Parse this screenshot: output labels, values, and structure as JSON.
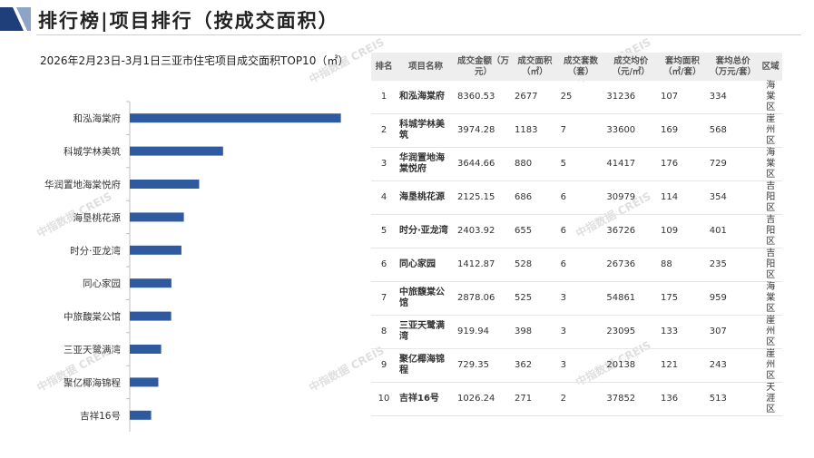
{
  "header": {
    "title": "排行榜|项目排行（按成交面积）"
  },
  "watermark_text": "中指数据 CREIS",
  "colors": {
    "bar": "#2f5aa0",
    "header_mark_dark": "#1f3f7a",
    "header_mark_light": "#8ea3c8"
  },
  "chart_data": {
    "type": "bar",
    "orientation": "horizontal",
    "title": "2026年2月23日-3月1日三亚市住宅项目成交面积TOP10（㎡）",
    "categories": [
      "和泓海棠府",
      "科城学林美筑",
      "华润置地海棠悦府",
      "海垦桃花源",
      "时分·亚龙湾",
      "同心家园",
      "中旅馥棠公馆",
      "三亚天鹭满湾",
      "聚亿椰海锦程",
      "吉祥16号"
    ],
    "values": [
      2677,
      1183,
      880,
      686,
      655,
      528,
      525,
      398,
      362,
      271
    ],
    "xlim": [
      0,
      2900
    ],
    "grid": false,
    "legend": "none"
  },
  "table": {
    "headers": [
      "排名",
      "项目名称",
      "成交金额（万元）",
      "成交面积（㎡）",
      "成交套数（套）",
      "成交均价（元/㎡）",
      "套均面积（㎡/套）",
      "套均总价（万元/套）",
      "区域"
    ],
    "rows": [
      [
        "1",
        "和泓海棠府",
        "8360.53",
        "2677",
        "25",
        "31236",
        "107",
        "334",
        "海棠区"
      ],
      [
        "2",
        "科城学林美筑",
        "3974.28",
        "1183",
        "7",
        "33600",
        "169",
        "568",
        "崖州区"
      ],
      [
        "3",
        "华润置地海棠悦府",
        "3644.66",
        "880",
        "5",
        "41417",
        "176",
        "729",
        "海棠区"
      ],
      [
        "4",
        "海垦桃花源",
        "2125.15",
        "686",
        "6",
        "30979",
        "114",
        "354",
        "吉阳区"
      ],
      [
        "5",
        "时分·亚龙湾",
        "2403.92",
        "655",
        "6",
        "36726",
        "109",
        "401",
        "吉阳区"
      ],
      [
        "6",
        "同心家园",
        "1412.87",
        "528",
        "6",
        "26736",
        "88",
        "235",
        "吉阳区"
      ],
      [
        "7",
        "中旅馥棠公馆",
        "2878.06",
        "525",
        "3",
        "54861",
        "175",
        "959",
        "海棠区"
      ],
      [
        "8",
        "三亚天鹭满湾",
        "919.94",
        "398",
        "3",
        "23095",
        "133",
        "307",
        "崖州区"
      ],
      [
        "9",
        "聚亿椰海锦程",
        "729.35",
        "362",
        "3",
        "20138",
        "121",
        "243",
        "崖州区"
      ],
      [
        "10",
        "吉祥16号",
        "1026.24",
        "271",
        "2",
        "37852",
        "136",
        "513",
        "天涯区"
      ]
    ]
  }
}
